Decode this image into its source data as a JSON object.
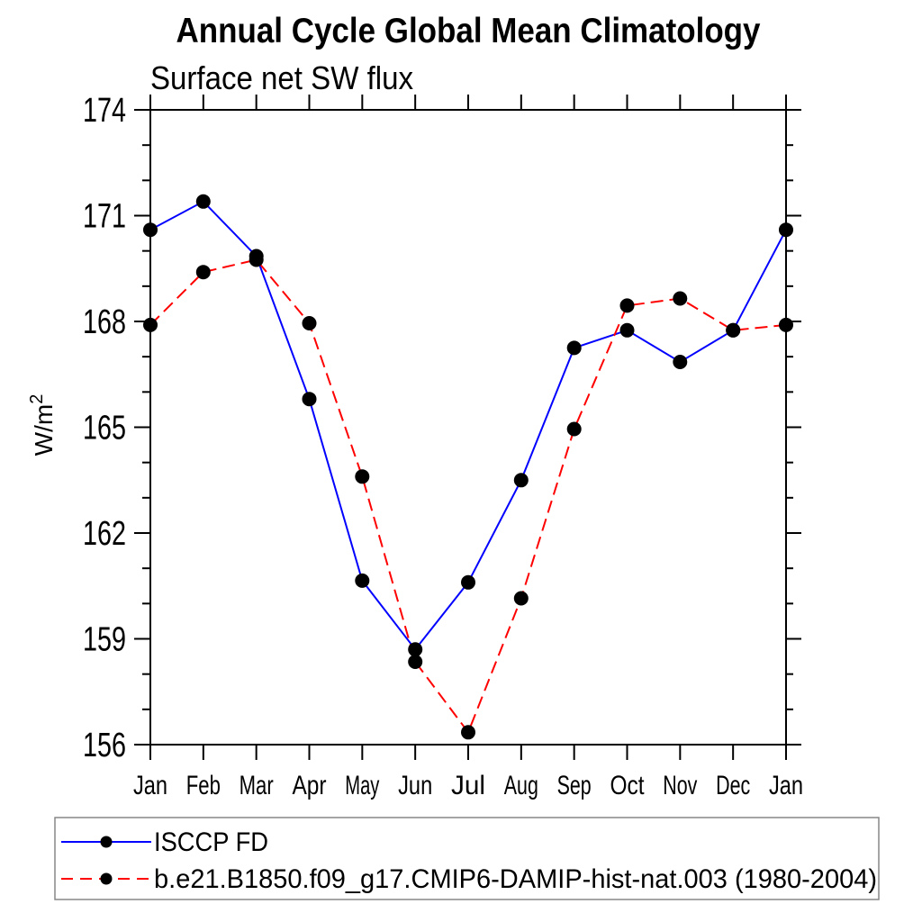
{
  "page": {
    "background": "#ffffff"
  },
  "header": {
    "title": "Annual Cycle Global Mean Climatology",
    "subtitle": "Surface net SW flux"
  },
  "y_axis": {
    "label_base": "W/m",
    "label_sup": "2"
  },
  "legend": {
    "entries": [
      {
        "label": "ISCCP FD",
        "color": "#0000ff",
        "line_style": "solid",
        "marker": "black-dot"
      },
      {
        "label": "b.e21.B1850.f09_g17.CMIP6-DAMIP-hist-nat.003 (1980-2004)",
        "color": "#ff0000",
        "line_style": "dashed",
        "marker": "black-dot"
      }
    ]
  },
  "chart_data": {
    "type": "line",
    "title": "Annual Cycle Global Mean Climatology",
    "subtitle": "Surface net SW flux",
    "xlabel": "",
    "ylabel": "W/m^2",
    "categories": [
      "Jan",
      "Feb",
      "Mar",
      "Apr",
      "May",
      "Jun",
      "Jul",
      "Aug",
      "Sep",
      "Oct",
      "Nov",
      "Dec",
      "Jan"
    ],
    "ylim": [
      156,
      174
    ],
    "yticks_major": [
      156,
      159,
      162,
      165,
      168,
      171,
      174
    ],
    "ytick_minor_step": 1,
    "grid": false,
    "legend_position": "bottom-left-outside-box",
    "marker": {
      "shape": "circle",
      "color": "#000000",
      "radius_px": 8
    },
    "series": [
      {
        "name": "ISCCP FD",
        "color": "#0000ff",
        "line_style": "solid",
        "values": [
          170.6,
          171.4,
          169.85,
          165.8,
          160.65,
          158.7,
          160.6,
          163.5,
          167.25,
          167.75,
          166.85,
          167.75,
          170.6
        ]
      },
      {
        "name": "b.e21.B1850.f09_g17.CMIP6-DAMIP-hist-nat.003 (1980-2004)",
        "color": "#ff0000",
        "line_style": "dashed",
        "values": [
          167.9,
          169.4,
          169.75,
          167.95,
          163.6,
          158.35,
          156.35,
          160.15,
          164.95,
          168.45,
          168.65,
          167.75,
          167.9
        ]
      }
    ]
  }
}
